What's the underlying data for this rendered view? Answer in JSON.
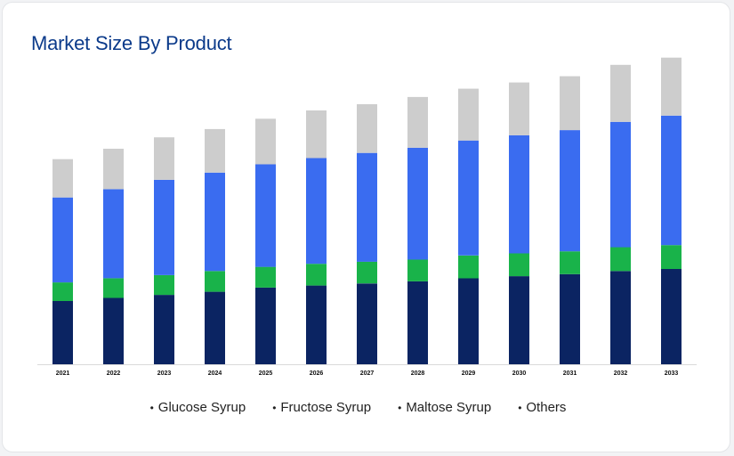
{
  "title": "Market Size By Product",
  "colors": {
    "title": "#0b3a8a",
    "axis": "#d9d9d9"
  },
  "chart_data": {
    "type": "bar",
    "stacked": true,
    "title": "Market Size By Product",
    "xlabel": "",
    "ylabel": "",
    "ylim": [
      0,
      300
    ],
    "grid": false,
    "legend_position": "bottom",
    "categories": [
      "2021",
      "2022",
      "2023",
      "2024",
      "2025",
      "2026",
      "2027",
      "2028",
      "2029",
      "2030",
      "2031",
      "2032",
      "2033"
    ],
    "series": [
      {
        "name": "Glucose Syrup",
        "color": "#0b2462",
        "values": [
          61,
          64,
          67,
          70,
          74,
          76,
          78,
          80,
          83,
          85,
          87,
          90,
          92
        ]
      },
      {
        "name": "Fructose Syrup",
        "color": "#19b34a",
        "values": [
          18,
          19,
          19,
          20,
          20,
          21,
          21,
          21,
          22,
          22,
          22,
          23,
          23
        ]
      },
      {
        "name": "Maltose Syrup",
        "color": "#3a6cf0",
        "values": [
          82,
          86,
          92,
          95,
          99,
          102,
          105,
          108,
          111,
          114,
          117,
          121,
          125
        ]
      },
      {
        "name": "Others",
        "color": "#cdcdcd",
        "values": [
          37,
          39,
          41,
          42,
          44,
          46,
          47,
          49,
          50,
          51,
          52,
          55,
          56
        ]
      }
    ]
  },
  "legend": [
    "Glucose Syrup",
    "Fructose Syrup",
    "Maltose Syrup",
    "Others"
  ]
}
